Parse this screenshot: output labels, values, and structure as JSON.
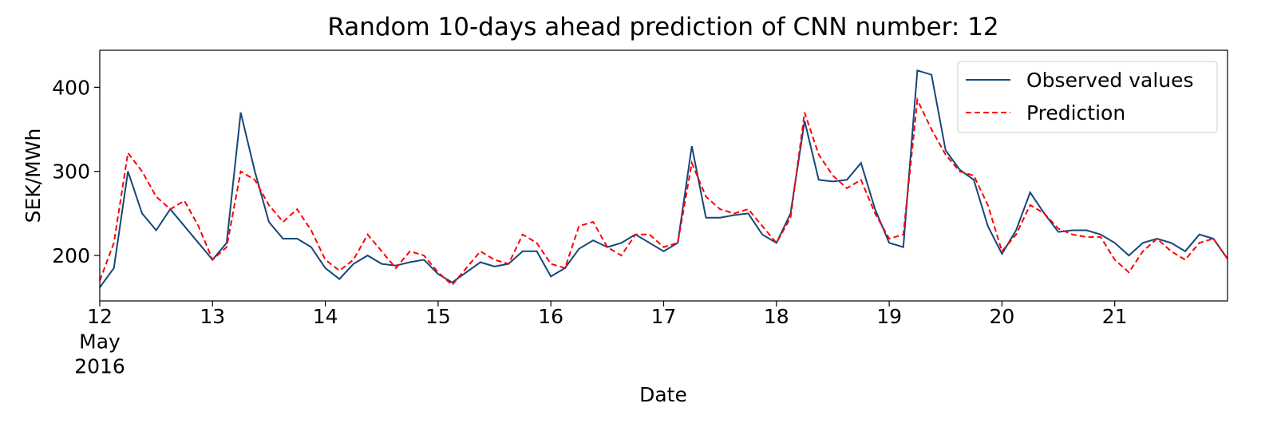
{
  "chart_data": {
    "type": "line",
    "title": "Random 10-days ahead prediction of CNN number: 12",
    "xlabel": "Date",
    "ylabel": "SEK/MWh",
    "x": [
      12,
      12.125,
      12.25,
      12.375,
      12.5,
      12.625,
      12.75,
      12.875,
      13,
      13.125,
      13.25,
      13.375,
      13.5,
      13.625,
      13.75,
      13.875,
      14,
      14.125,
      14.25,
      14.375,
      14.5,
      14.625,
      14.75,
      14.875,
      15,
      15.125,
      15.25,
      15.375,
      15.5,
      15.625,
      15.75,
      15.875,
      16,
      16.125,
      16.25,
      16.375,
      16.5,
      16.625,
      16.75,
      16.875,
      17,
      17.125,
      17.25,
      17.375,
      17.5,
      17.625,
      17.75,
      17.875,
      18,
      18.125,
      18.25,
      18.375,
      18.5,
      18.625,
      18.75,
      18.875,
      19,
      19.125,
      19.25,
      19.375,
      19.5,
      19.625,
      19.75,
      19.875,
      20,
      20.125,
      20.25,
      20.375,
      20.5,
      20.625,
      20.75,
      20.875,
      21,
      21.125,
      21.25,
      21.375,
      21.5,
      21.625,
      21.75,
      21.875,
      22
    ],
    "series": [
      {
        "name": "Observed values",
        "color": "#15477a",
        "linestyle": "solid",
        "values": [
          162,
          185,
          300,
          250,
          230,
          255,
          235,
          215,
          195,
          215,
          370,
          300,
          240,
          220,
          220,
          210,
          185,
          172,
          190,
          200,
          190,
          188,
          192,
          195,
          178,
          168,
          180,
          192,
          187,
          190,
          205,
          205,
          175,
          185,
          208,
          218,
          210,
          215,
          225,
          215,
          205,
          215,
          330,
          245,
          245,
          248,
          250,
          225,
          215,
          250,
          360,
          290,
          288,
          290,
          310,
          255,
          215,
          210,
          420,
          415,
          325,
          302,
          290,
          235,
          202,
          230,
          275,
          250,
          228,
          230,
          230,
          225,
          215,
          200,
          215,
          220,
          215,
          205,
          225,
          220,
          196
        ]
      },
      {
        "name": "Prediction",
        "color": "#ff0000",
        "linestyle": "dashed",
        "values": [
          170,
          215,
          322,
          300,
          270,
          255,
          265,
          235,
          195,
          210,
          300,
          290,
          260,
          240,
          255,
          230,
          195,
          182,
          195,
          225,
          205,
          185,
          205,
          200,
          180,
          165,
          185,
          205,
          195,
          190,
          225,
          215,
          190,
          185,
          235,
          240,
          210,
          200,
          225,
          225,
          210,
          215,
          310,
          270,
          255,
          250,
          255,
          235,
          215,
          245,
          370,
          320,
          295,
          280,
          290,
          250,
          220,
          225,
          385,
          350,
          320,
          300,
          295,
          260,
          205,
          225,
          260,
          250,
          232,
          225,
          222,
          222,
          195,
          180,
          205,
          220,
          205,
          195,
          215,
          220,
          196
        ]
      }
    ],
    "xlim": [
      12,
      22
    ],
    "xticks": [
      {
        "value": 12,
        "label": "12\nMay\n2016"
      },
      13,
      14,
      15,
      16,
      17,
      18,
      19,
      20,
      21
    ],
    "ylim": [
      146,
      444
    ],
    "yticks": [
      200,
      300,
      400
    ],
    "legend": "upper right",
    "grid": false
  }
}
